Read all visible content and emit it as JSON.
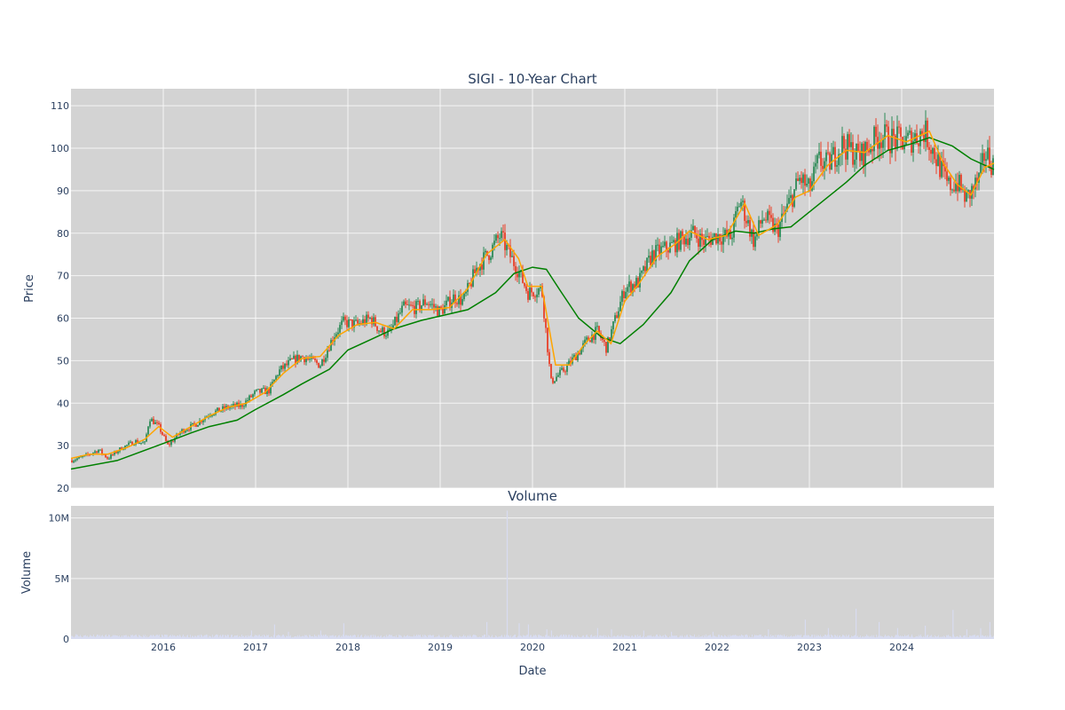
{
  "chart_data": [
    {
      "type": "candlestick",
      "title": "SIGI - 10-Year Chart",
      "ylabel": "Price",
      "ylim": [
        20,
        114
      ],
      "yticks": [
        20,
        30,
        40,
        50,
        60,
        70,
        80,
        90,
        100,
        110
      ],
      "xlim": [
        2015.0,
        2025.0
      ],
      "xticks": [
        "2016",
        "2017",
        "2018",
        "2019",
        "2020",
        "2021",
        "2022",
        "2023",
        "2024"
      ],
      "grid": true,
      "colors": {
        "increasing": "#2e8b57",
        "decreasing": "#e8402a",
        "ma_short": "#ffa500",
        "ma_long": "#008000",
        "plot_bg": "#d3d3d3"
      },
      "price_path": [
        [
          2015.0,
          26.5
        ],
        [
          2015.15,
          27.5
        ],
        [
          2015.3,
          29.0
        ],
        [
          2015.4,
          27.0
        ],
        [
          2015.55,
          29.5
        ],
        [
          2015.7,
          31.0
        ],
        [
          2015.8,
          30.5
        ],
        [
          2015.85,
          36.5
        ],
        [
          2015.95,
          34.5
        ],
        [
          2016.05,
          30.0
        ],
        [
          2016.2,
          33.5
        ],
        [
          2016.35,
          35.0
        ],
        [
          2016.5,
          37.5
        ],
        [
          2016.7,
          39.0
        ],
        [
          2016.85,
          39.5
        ],
        [
          2017.0,
          42.5
        ],
        [
          2017.15,
          43.0
        ],
        [
          2017.25,
          47.5
        ],
        [
          2017.4,
          50.0
        ],
        [
          2017.5,
          51.0
        ],
        [
          2017.7,
          49.0
        ],
        [
          2017.85,
          56.0
        ],
        [
          2017.95,
          59.0
        ],
        [
          2018.1,
          58.5
        ],
        [
          2018.25,
          60.0
        ],
        [
          2018.35,
          57.0
        ],
        [
          2018.45,
          56.5
        ],
        [
          2018.6,
          62.5
        ],
        [
          2018.75,
          62.5
        ],
        [
          2018.85,
          64.0
        ],
        [
          2019.0,
          61.5
        ],
        [
          2019.15,
          65.0
        ],
        [
          2019.25,
          64.0
        ],
        [
          2019.4,
          72.0
        ],
        [
          2019.55,
          76.0
        ],
        [
          2019.65,
          79.5
        ],
        [
          2019.75,
          75.0
        ],
        [
          2019.85,
          71.0
        ],
        [
          2019.95,
          66.0
        ],
        [
          2020.1,
          67.0
        ],
        [
          2020.2,
          45.0
        ],
        [
          2020.35,
          48.0
        ],
        [
          2020.5,
          52.0
        ],
        [
          2020.6,
          55.0
        ],
        [
          2020.7,
          57.0
        ],
        [
          2020.8,
          53.0
        ],
        [
          2020.9,
          60.0
        ],
        [
          2021.0,
          67.0
        ],
        [
          2021.15,
          68.5
        ],
        [
          2021.3,
          75.0
        ],
        [
          2021.5,
          77.0
        ],
        [
          2021.65,
          79.0
        ],
        [
          2021.75,
          80.0
        ],
        [
          2021.85,
          78.0
        ],
        [
          2022.0,
          79.5
        ],
        [
          2022.15,
          79.0
        ],
        [
          2022.25,
          88.0
        ],
        [
          2022.4,
          78.0
        ],
        [
          2022.5,
          84.0
        ],
        [
          2022.65,
          80.5
        ],
        [
          2022.8,
          88.0
        ],
        [
          2022.9,
          93.0
        ],
        [
          2023.0,
          90.0
        ],
        [
          2023.1,
          97.0
        ],
        [
          2023.2,
          96.0
        ],
        [
          2023.35,
          101.0
        ],
        [
          2023.55,
          98.0
        ],
        [
          2023.75,
          103.0
        ],
        [
          2023.9,
          102.0
        ],
        [
          2024.05,
          101.5
        ],
        [
          2024.25,
          104.0
        ],
        [
          2024.35,
          99.0
        ],
        [
          2024.5,
          91.0
        ],
        [
          2024.6,
          92.0
        ],
        [
          2024.7,
          88.0
        ],
        [
          2024.85,
          93.0
        ],
        [
          2024.9,
          99.0
        ],
        [
          2025.0,
          96.0
        ]
      ],
      "ma_short": [
        [
          2015.0,
          27.0
        ],
        [
          2015.2,
          28.0
        ],
        [
          2015.4,
          28.0
        ],
        [
          2015.6,
          29.5
        ],
        [
          2015.8,
          31.5
        ],
        [
          2015.95,
          34.5
        ],
        [
          2016.1,
          32.0
        ],
        [
          2016.3,
          34.5
        ],
        [
          2016.5,
          37.0
        ],
        [
          2016.7,
          39.0
        ],
        [
          2016.9,
          40.0
        ],
        [
          2017.1,
          42.5
        ],
        [
          2017.3,
          47.0
        ],
        [
          2017.5,
          50.5
        ],
        [
          2017.7,
          51.0
        ],
        [
          2017.9,
          56.0
        ],
        [
          2018.1,
          58.5
        ],
        [
          2018.3,
          59.0
        ],
        [
          2018.5,
          57.5
        ],
        [
          2018.7,
          62.0
        ],
        [
          2018.9,
          62.0
        ],
        [
          2019.1,
          62.5
        ],
        [
          2019.3,
          67.0
        ],
        [
          2019.5,
          75.0
        ],
        [
          2019.7,
          78.5
        ],
        [
          2019.85,
          74.0
        ],
        [
          2019.95,
          67.5
        ],
        [
          2020.1,
          67.5
        ],
        [
          2020.25,
          49.0
        ],
        [
          2020.4,
          49.0
        ],
        [
          2020.55,
          53.5
        ],
        [
          2020.7,
          57.0
        ],
        [
          2020.85,
          54.0
        ],
        [
          2021.0,
          64.0
        ],
        [
          2021.15,
          68.0
        ],
        [
          2021.35,
          74.5
        ],
        [
          2021.55,
          77.5
        ],
        [
          2021.7,
          80.5
        ],
        [
          2021.9,
          78.5
        ],
        [
          2022.1,
          79.5
        ],
        [
          2022.3,
          87.0
        ],
        [
          2022.45,
          79.5
        ],
        [
          2022.65,
          82.0
        ],
        [
          2022.85,
          88.5
        ],
        [
          2023.0,
          90.0
        ],
        [
          2023.2,
          96.0
        ],
        [
          2023.4,
          99.5
        ],
        [
          2023.6,
          99.0
        ],
        [
          2023.85,
          103.0
        ],
        [
          2024.05,
          101.5
        ],
        [
          2024.3,
          104.0
        ],
        [
          2024.45,
          96.5
        ],
        [
          2024.6,
          91.5
        ],
        [
          2024.75,
          89.0
        ],
        [
          2024.9,
          95.5
        ],
        [
          2025.0,
          96.5
        ]
      ],
      "ma_long": [
        [
          2015.0,
          24.5
        ],
        [
          2015.5,
          26.5
        ],
        [
          2016.0,
          30.5
        ],
        [
          2016.3,
          33.0
        ],
        [
          2016.5,
          34.5
        ],
        [
          2016.8,
          36.0
        ],
        [
          2017.0,
          38.5
        ],
        [
          2017.3,
          42.0
        ],
        [
          2017.5,
          44.5
        ],
        [
          2017.8,
          48.0
        ],
        [
          2018.0,
          52.5
        ],
        [
          2018.3,
          55.5
        ],
        [
          2018.5,
          57.5
        ],
        [
          2018.8,
          59.5
        ],
        [
          2019.0,
          60.5
        ],
        [
          2019.3,
          62.0
        ],
        [
          2019.6,
          66.0
        ],
        [
          2019.8,
          70.5
        ],
        [
          2020.0,
          72.0
        ],
        [
          2020.15,
          71.5
        ],
        [
          2020.3,
          66.5
        ],
        [
          2020.5,
          60.0
        ],
        [
          2020.75,
          55.5
        ],
        [
          2020.95,
          54.0
        ],
        [
          2021.2,
          58.5
        ],
        [
          2021.5,
          66.0
        ],
        [
          2021.7,
          73.5
        ],
        [
          2021.95,
          78.5
        ],
        [
          2022.2,
          80.5
        ],
        [
          2022.4,
          80.0
        ],
        [
          2022.6,
          81.0
        ],
        [
          2022.8,
          81.5
        ],
        [
          2023.0,
          85.0
        ],
        [
          2023.2,
          88.5
        ],
        [
          2023.4,
          92.0
        ],
        [
          2023.6,
          96.0
        ],
        [
          2023.85,
          99.5
        ],
        [
          2024.1,
          101.0
        ],
        [
          2024.3,
          102.5
        ],
        [
          2024.55,
          100.5
        ],
        [
          2024.75,
          97.5
        ],
        [
          2024.95,
          95.5
        ],
        [
          2025.0,
          95.0
        ]
      ]
    },
    {
      "type": "bar",
      "title": "Volume",
      "xlabel": "Date",
      "ylabel": "Volume",
      "ylim": [
        0,
        11000000
      ],
      "yticks": [
        0,
        5000000,
        10000000
      ],
      "ytick_labels": [
        "0",
        "5M",
        "10M"
      ],
      "xlim": [
        2015.0,
        2025.0
      ],
      "xticks": [
        "2016",
        "2017",
        "2018",
        "2019",
        "2020",
        "2021",
        "2022",
        "2023",
        "2024"
      ],
      "bar_color": "#d8dcf0",
      "baseline_volume": 250000,
      "spikes": [
        [
          2015.05,
          400000
        ],
        [
          2016.95,
          700000
        ],
        [
          2017.2,
          1200000
        ],
        [
          2017.35,
          600000
        ],
        [
          2017.7,
          700000
        ],
        [
          2017.95,
          1300000
        ],
        [
          2019.5,
          1400000
        ],
        [
          2019.72,
          10600000
        ],
        [
          2019.85,
          1300000
        ],
        [
          2019.95,
          1200000
        ],
        [
          2020.15,
          800000
        ],
        [
          2020.2,
          700000
        ],
        [
          2020.7,
          900000
        ],
        [
          2020.85,
          800000
        ],
        [
          2021.2,
          700000
        ],
        [
          2021.5,
          600000
        ],
        [
          2021.95,
          600000
        ],
        [
          2022.55,
          800000
        ],
        [
          2022.95,
          1600000
        ],
        [
          2023.2,
          900000
        ],
        [
          2023.5,
          2500000
        ],
        [
          2023.75,
          1400000
        ],
        [
          2023.95,
          900000
        ],
        [
          2024.25,
          1100000
        ],
        [
          2024.55,
          2400000
        ],
        [
          2024.7,
          800000
        ],
        [
          2024.85,
          900000
        ],
        [
          2024.95,
          1400000
        ]
      ]
    }
  ]
}
